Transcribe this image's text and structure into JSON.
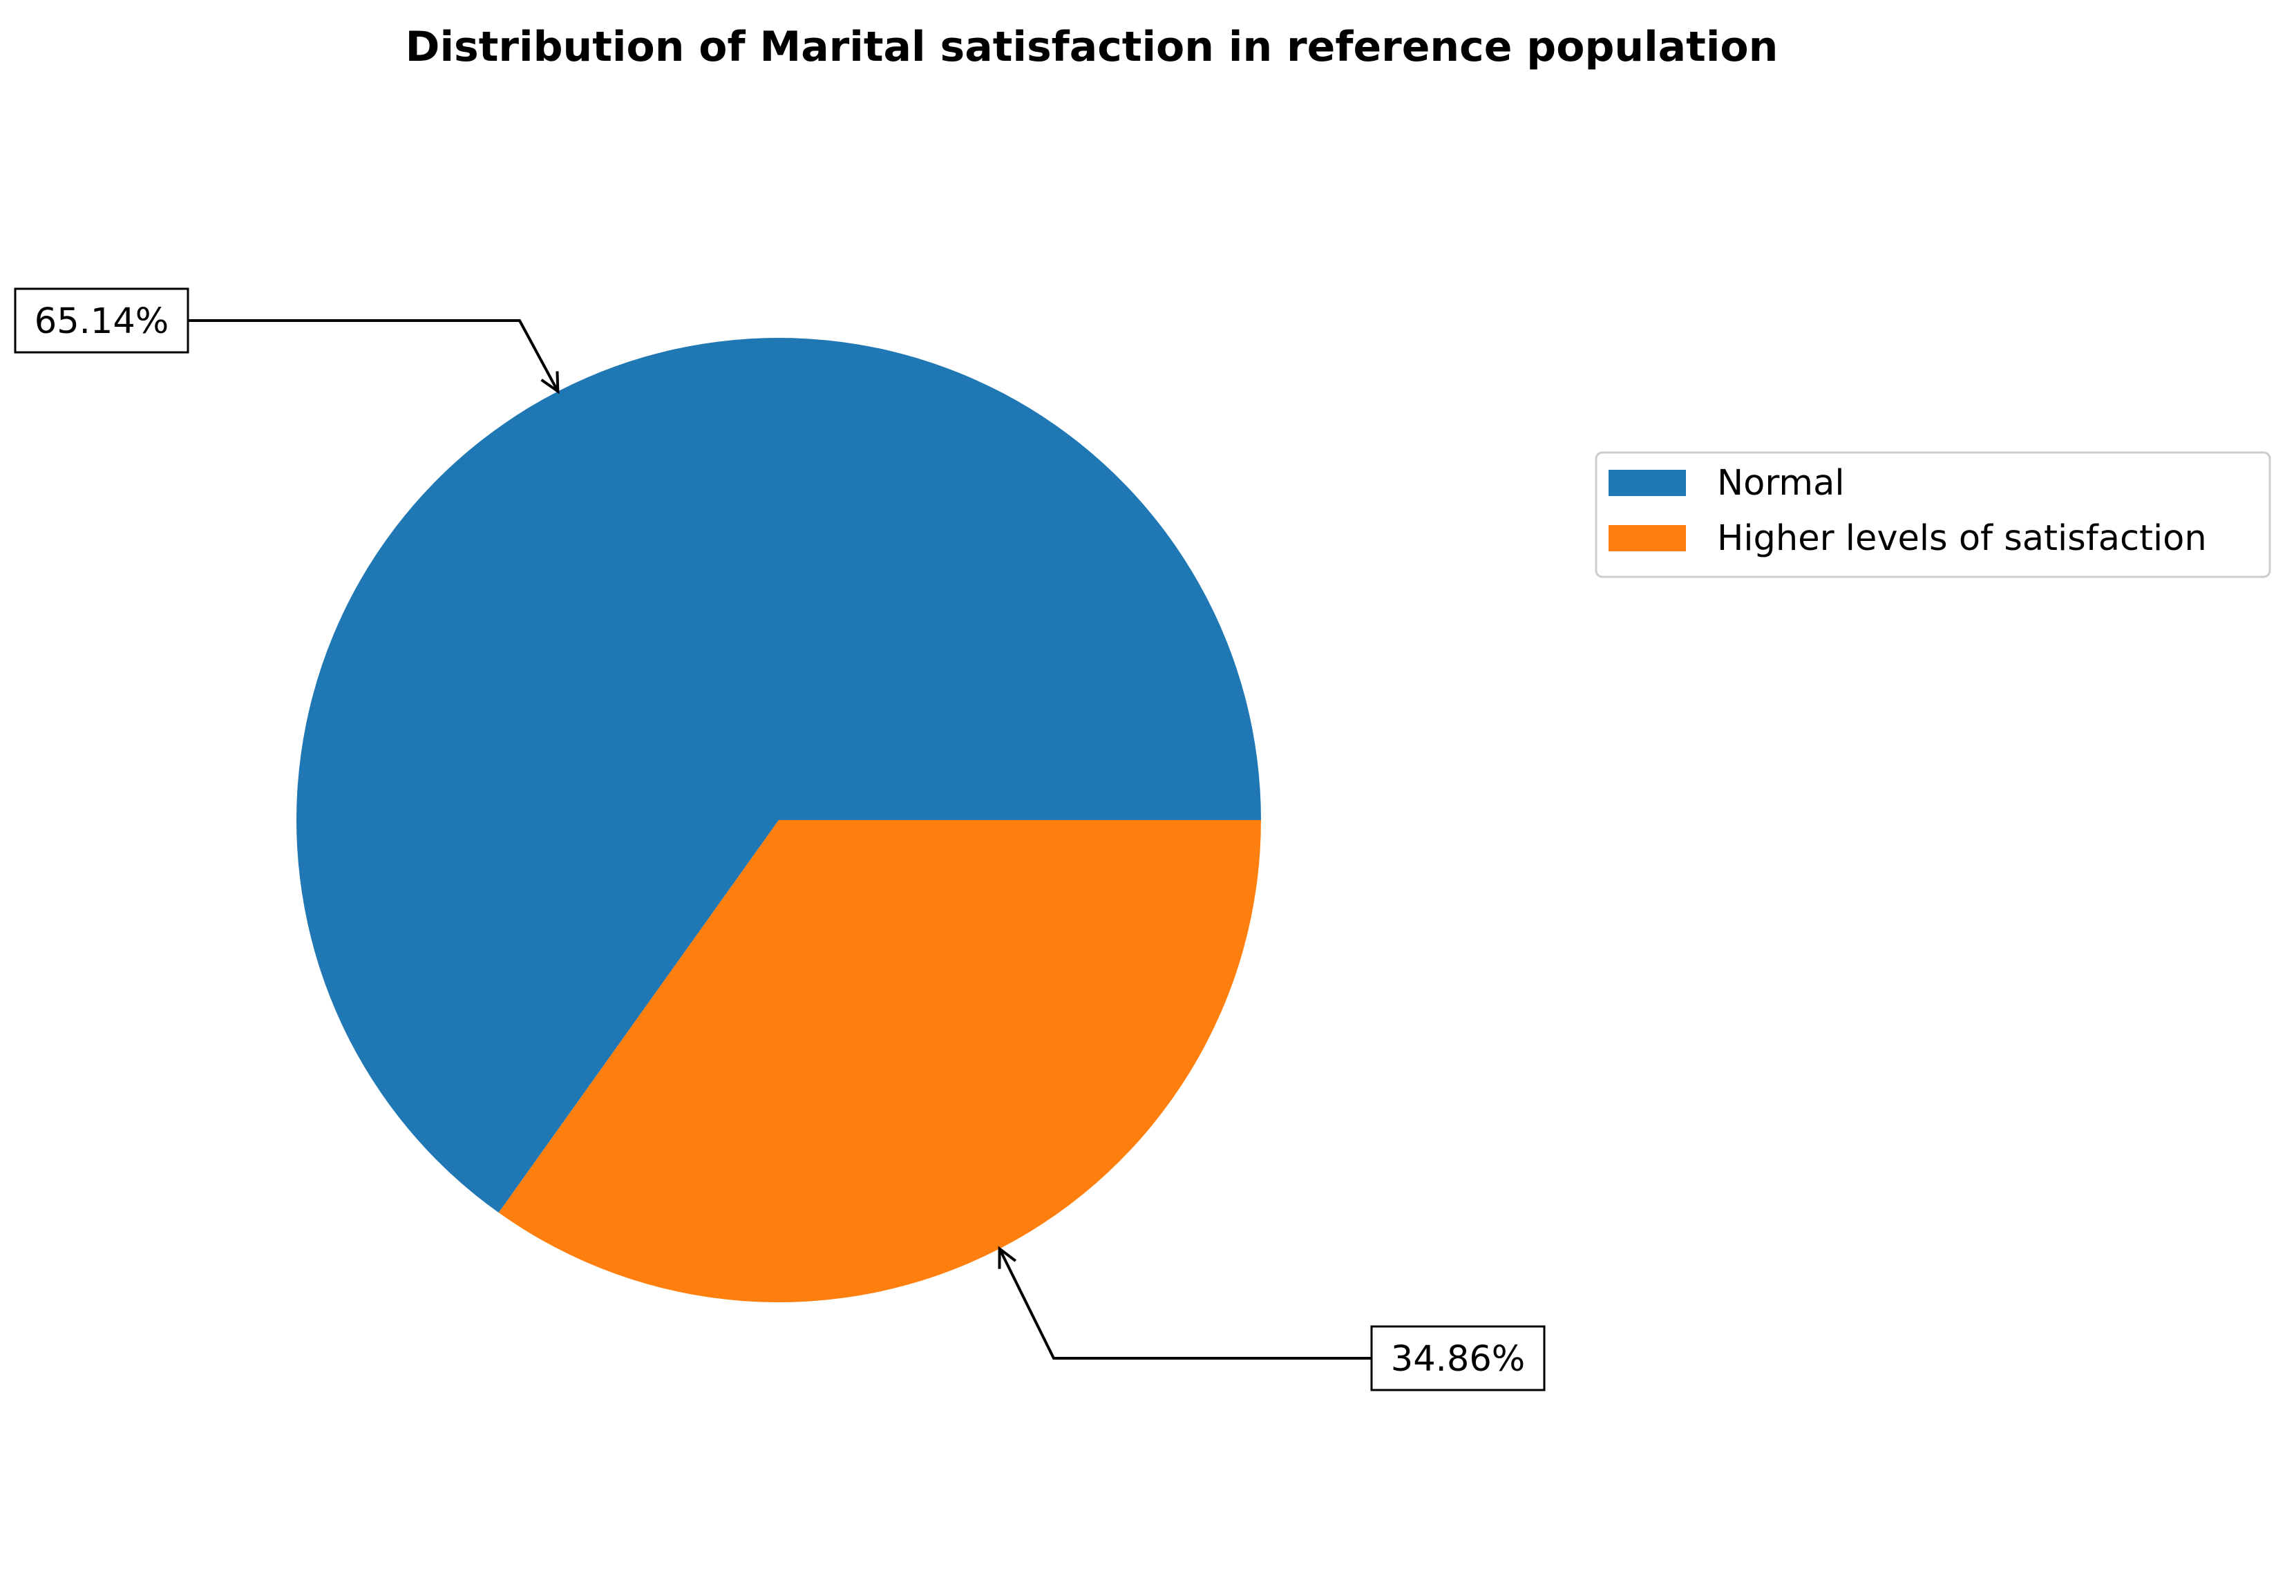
{
  "chart_data": {
    "type": "pie",
    "title": "Distribution of Marital satisfaction in reference population",
    "slices": [
      {
        "label": "Normal",
        "value": 65.14,
        "value_label": "65.14%",
        "color": "#1f77b4"
      },
      {
        "label": "Higher levels of satisfaction",
        "value": 34.86,
        "value_label": "34.86%",
        "color": "#ff7f0e"
      }
    ],
    "start_angle_deg": 0,
    "direction": "counterclockwise",
    "legend_position": "right"
  }
}
